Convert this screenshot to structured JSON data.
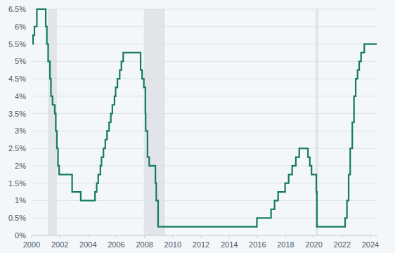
{
  "chart_data": {
    "type": "line",
    "line_style": "step",
    "color": "#137a63",
    "grid": true,
    "x": [
      2000.08,
      2000.1,
      2000.2,
      2000.37,
      2001.0,
      2001.08,
      2001.17,
      2001.3,
      2001.37,
      2001.48,
      2001.64,
      2001.71,
      2001.79,
      2001.87,
      2001.95,
      2002.87,
      2003.48,
      2004.49,
      2004.61,
      2004.72,
      2004.87,
      2004.95,
      2005.09,
      2005.22,
      2005.34,
      2005.49,
      2005.61,
      2005.72,
      2005.87,
      2005.95,
      2006.08,
      2006.24,
      2006.36,
      2006.49,
      2007.72,
      2007.83,
      2007.95,
      2008.06,
      2008.08,
      2008.21,
      2008.33,
      2008.77,
      2008.83,
      2008.96,
      2015.96,
      2016.96,
      2017.21,
      2017.46,
      2017.96,
      2018.21,
      2018.46,
      2018.72,
      2018.96,
      2019.58,
      2019.71,
      2019.83,
      2020.17,
      2020.21,
      2022.21,
      2022.34,
      2022.46,
      2022.57,
      2022.72,
      2022.84,
      2022.96,
      2023.09,
      2023.21,
      2023.34,
      2023.57,
      2024.45
    ],
    "values": [
      5.5,
      5.75,
      6.0,
      6.5,
      6.0,
      5.5,
      5.0,
      4.5,
      4.0,
      3.75,
      3.5,
      3.0,
      2.5,
      2.0,
      1.75,
      1.25,
      1.0,
      1.25,
      1.5,
      1.75,
      2.0,
      2.25,
      2.5,
      2.75,
      3.0,
      3.25,
      3.5,
      3.75,
      4.0,
      4.25,
      4.5,
      4.75,
      5.0,
      5.25,
      4.75,
      4.5,
      4.25,
      3.5,
      3.0,
      2.25,
      2.0,
      1.5,
      1.0,
      0.25,
      0.5,
      0.75,
      1.0,
      1.25,
      1.5,
      1.75,
      2.0,
      2.25,
      2.5,
      2.25,
      2.0,
      1.75,
      1.25,
      0.25,
      0.5,
      1.0,
      1.75,
      2.5,
      3.25,
      4.0,
      4.5,
      4.75,
      5.0,
      5.25,
      5.5,
      5.5
    ],
    "recessions": [
      [
        2001.15,
        2001.8
      ],
      [
        2007.95,
        2009.45
      ],
      [
        2020.12,
        2020.32
      ]
    ],
    "xlim": [
      2000,
      2024.5
    ],
    "xticks": [
      2000,
      2002,
      2004,
      2006,
      2008,
      2010,
      2012,
      2014,
      2016,
      2018,
      2020,
      2022,
      2024
    ],
    "ylim": [
      0,
      6.5
    ],
    "yticks": [
      {
        "value": 0,
        "label": "0%"
      },
      {
        "value": 0.5,
        "label": "0.5%"
      },
      {
        "value": 1,
        "label": "1%"
      },
      {
        "value": 1.5,
        "label": "1.5%"
      },
      {
        "value": 2,
        "label": "2%"
      },
      {
        "value": 2.5,
        "label": "2.5%"
      },
      {
        "value": 3,
        "label": "3%"
      },
      {
        "value": 3.5,
        "label": "3.5%"
      },
      {
        "value": 4,
        "label": "4%"
      },
      {
        "value": 4.5,
        "label": "4.5%"
      },
      {
        "value": 5,
        "label": "5%"
      },
      {
        "value": 5.5,
        "label": "5.5%"
      },
      {
        "value": 6,
        "label": "6%"
      },
      {
        "value": 6.5,
        "label": "6.5%"
      }
    ]
  }
}
